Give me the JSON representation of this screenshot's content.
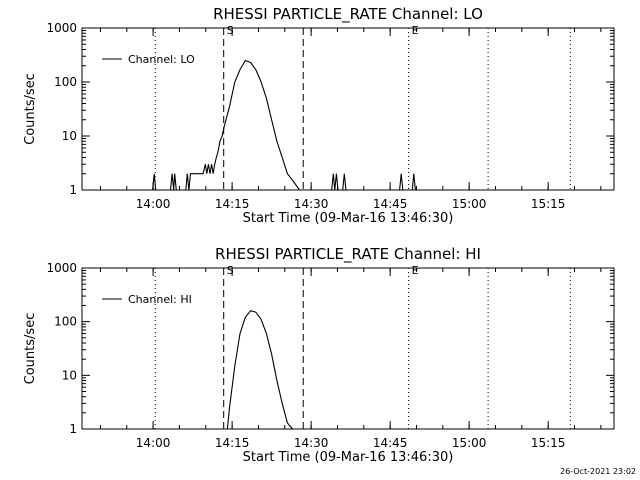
{
  "footer": {
    "timestamp": "26-Oct-2021 23:02"
  },
  "chart_data": [
    {
      "type": "line",
      "title": "RHESSI PARTICLE_RATE Channel: LO",
      "xlabel": "Start Time (09-Mar-16 13:46:30)",
      "ylabel": "Counts/sec",
      "x_unit": "minutes after 13:46:30",
      "xlim": [
        0,
        101
      ],
      "ylim": [
        1,
        1000
      ],
      "yscale": "log",
      "x_ticks": [
        {
          "label": "14:00",
          "x": 13.5
        },
        {
          "label": "14:15",
          "x": 28.5
        },
        {
          "label": "14:30",
          "x": 43.5
        },
        {
          "label": "14:45",
          "x": 58.5
        },
        {
          "label": "15:00",
          "x": 73.5
        },
        {
          "label": "15:15",
          "x": 88.5
        }
      ],
      "y_ticks": [
        {
          "label": "1",
          "y": 1
        },
        {
          "label": "10",
          "y": 10
        },
        {
          "label": "100",
          "y": 100
        },
        {
          "label": "1000",
          "y": 1000
        }
      ],
      "markers": [
        {
          "x": 13.9,
          "style": "dotted",
          "label": ""
        },
        {
          "x": 26.9,
          "style": "dashed",
          "label": "S"
        },
        {
          "x": 42.0,
          "style": "dashed",
          "label": ""
        },
        {
          "x": 62.0,
          "style": "dotted",
          "label": "E"
        },
        {
          "x": 77.1,
          "style": "dotted",
          "label": ""
        },
        {
          "x": 92.7,
          "style": "dotted",
          "label": ""
        }
      ],
      "legend": {
        "label": "Channel: LO",
        "position": "top-left"
      },
      "series": [
        {
          "name": "Channel: LO",
          "x": [
            0,
            13.4,
            13.7,
            14.0,
            16.8,
            17.1,
            17.4,
            17.6,
            17.9,
            18.2,
            19.7,
            20.0,
            20.3,
            20.6,
            20.9,
            21.4,
            22.0,
            23.0,
            23.4,
            23.7,
            24.0,
            24.3,
            24.6,
            24.9,
            25.2,
            25.5,
            25.8,
            26.2,
            26.6,
            27.0,
            28.0,
            29.0,
            30.0,
            31.0,
            32.0,
            33.0,
            34.0,
            35.0,
            36.0,
            37.0,
            38.0,
            39.0,
            40.0,
            41.0,
            41.3,
            47.4,
            47.7,
            48.0,
            48.3,
            48.6,
            49.5,
            49.8,
            50.1,
            50.4,
            60.3,
            60.6,
            60.9,
            62.7,
            63.0,
            63.3,
            101
          ],
          "y": [
            1,
            1,
            2,
            1,
            1,
            2,
            1,
            2,
            1,
            1,
            1,
            2,
            1,
            2,
            2,
            2,
            2,
            2,
            3,
            2,
            3,
            2,
            3,
            2,
            3,
            4,
            5,
            8,
            10,
            15,
            35,
            100,
            170,
            250,
            230,
            170,
            100,
            50,
            20,
            8,
            4,
            2,
            1.5,
            1.1,
            1,
            1,
            2,
            1,
            2,
            1,
            1,
            2,
            1,
            1,
            1,
            2,
            1,
            1,
            2,
            1,
            1
          ]
        }
      ]
    },
    {
      "type": "line",
      "title": "RHESSI PARTICLE_RATE Channel: HI",
      "xlabel": "Start Time (09-Mar-16 13:46:30)",
      "ylabel": "Counts/sec",
      "x_unit": "minutes after 13:46:30",
      "xlim": [
        0,
        101
      ],
      "ylim": [
        1,
        1000
      ],
      "yscale": "log",
      "x_ticks": [
        {
          "label": "14:00",
          "x": 13.5
        },
        {
          "label": "14:15",
          "x": 28.5
        },
        {
          "label": "14:30",
          "x": 43.5
        },
        {
          "label": "14:45",
          "x": 58.5
        },
        {
          "label": "15:00",
          "x": 73.5
        },
        {
          "label": "15:15",
          "x": 88.5
        }
      ],
      "y_ticks": [
        {
          "label": "1",
          "y": 1
        },
        {
          "label": "10",
          "y": 10
        },
        {
          "label": "100",
          "y": 100
        },
        {
          "label": "1000",
          "y": 1000
        }
      ],
      "markers": [
        {
          "x": 13.9,
          "style": "dotted",
          "label": ""
        },
        {
          "x": 26.9,
          "style": "dashed",
          "label": "S"
        },
        {
          "x": 42.0,
          "style": "dashed",
          "label": ""
        },
        {
          "x": 62.0,
          "style": "dotted",
          "label": "E"
        },
        {
          "x": 77.1,
          "style": "dotted",
          "label": ""
        },
        {
          "x": 92.7,
          "style": "dotted",
          "label": ""
        }
      ],
      "legend": {
        "label": "Channel: HI",
        "position": "top-left"
      },
      "series": [
        {
          "name": "Channel: HI",
          "x": [
            27.6,
            28.0,
            29.0,
            30.0,
            31.0,
            32.0,
            33.0,
            34.0,
            35.0,
            36.0,
            37.0,
            38.0,
            39.0,
            39.6,
            40.0
          ],
          "y": [
            1,
            2.5,
            15,
            60,
            120,
            160,
            150,
            110,
            60,
            25,
            8,
            3,
            1.3,
            1.1,
            1
          ]
        }
      ]
    }
  ]
}
